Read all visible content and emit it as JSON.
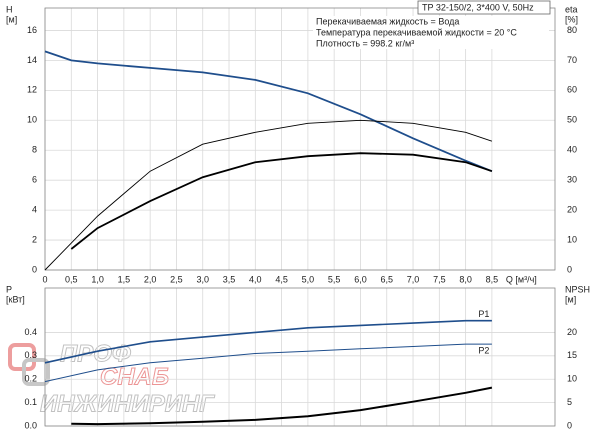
{
  "chart_data": [
    {
      "type": "line",
      "title": "TP 32-150/2, 3*400 V, 50Hz",
      "annotations": [
        "Перекачиваемая жидкость = Вода",
        "Температура перекачиваемой жидкости = 20 °C",
        "Плотность = 998.2 кг/м³"
      ],
      "y_label": [
        "H",
        "[м]"
      ],
      "y2_label": [
        "eta",
        "[%]"
      ],
      "x_label": "Q [м³/ч]",
      "xlim": [
        0,
        9.7
      ],
      "ylim": [
        0,
        17.5
      ],
      "y2lim": [
        0,
        87.5
      ],
      "xticks": [
        0,
        {
          "value": 0.5,
          "label": "0,5"
        },
        {
          "value": 1,
          "label": "1,0"
        },
        {
          "value": 1.5,
          "label": "1,5"
        },
        {
          "value": 2,
          "label": "2,0"
        },
        {
          "value": 2.5,
          "label": "2,5"
        },
        {
          "value": 3,
          "label": "3,0"
        },
        {
          "value": 3.5,
          "label": "3,5"
        },
        {
          "value": 4,
          "label": "4,0"
        },
        {
          "value": 4.5,
          "label": "4,5"
        },
        {
          "value": 5,
          "label": "5,0"
        },
        {
          "value": 5.5,
          "label": "5,5"
        },
        {
          "value": 6,
          "label": "6,0"
        },
        {
          "value": 6.5,
          "label": "6,5"
        },
        {
          "value": 7,
          "label": "7,0"
        },
        {
          "value": 7.5,
          "label": "7,5"
        },
        {
          "value": 8,
          "label": "8,0"
        },
        {
          "value": 8.5,
          "label": "8,5"
        }
      ],
      "yticks": [
        0,
        2,
        4,
        6,
        8,
        10,
        12,
        14,
        16
      ],
      "y2ticks": [
        0,
        10,
        20,
        30,
        40,
        50,
        60,
        70,
        80
      ],
      "grid": true,
      "series": [
        {
          "color": "#1f4e8c",
          "x": [
            0,
            0.5,
            1,
            2,
            3,
            4,
            5,
            6,
            7,
            8,
            8.5
          ],
          "values": [
            14.6,
            14.0,
            13.8,
            13.5,
            13.2,
            12.7,
            11.8,
            10.4,
            8.8,
            7.3,
            6.6
          ]
        },
        {
          "color": "#000000",
          "axis": "y2",
          "x": [
            0,
            0.5,
            1,
            2,
            3,
            4,
            5,
            6,
            7,
            8,
            8.5
          ],
          "values": [
            0,
            9,
            18,
            33,
            42,
            46,
            49,
            50,
            49,
            46,
            43
          ]
        },
        {
          "color": "#000000",
          "axis": "y2",
          "x": [
            0.5,
            1,
            2,
            3,
            4,
            5,
            6,
            7,
            8,
            8.5
          ],
          "values": [
            7,
            14,
            23,
            31,
            36,
            38,
            39,
            38.5,
            36,
            33
          ]
        }
      ]
    },
    {
      "type": "line",
      "y_label": [
        "P",
        "[кВт]"
      ],
      "y2_label": [
        "NPSH",
        "[м]"
      ],
      "xlim": [
        0,
        9.7
      ],
      "ylim": [
        0,
        0.59
      ],
      "y2lim": [
        0,
        29.5
      ],
      "yticks": [
        {
          "value": 0,
          "label": "0.0"
        },
        0.1,
        0.2,
        0.3,
        0.4
      ],
      "y2ticks": [
        0,
        5,
        10,
        15,
        20
      ],
      "grid": true,
      "series": [
        {
          "name": "P1",
          "color": "#1f4e8c",
          "x": [
            0,
            1,
            2,
            3,
            4,
            5,
            6,
            7,
            8,
            8.5
          ],
          "values": [
            0.27,
            0.32,
            0.36,
            0.38,
            0.4,
            0.42,
            0.43,
            0.44,
            0.45,
            0.45
          ]
        },
        {
          "name": "P2",
          "color": "#1f4e8c",
          "x": [
            0,
            1,
            2,
            3,
            4,
            5,
            6,
            7,
            8,
            8.5
          ],
          "values": [
            0.19,
            0.24,
            0.27,
            0.29,
            0.31,
            0.32,
            0.33,
            0.34,
            0.35,
            0.35
          ]
        },
        {
          "color": "#000000",
          "axis": "y2",
          "x": [
            0.5,
            1,
            2,
            3,
            4,
            5,
            6,
            7,
            8,
            8.5
          ],
          "values": [
            0.5,
            0.4,
            0.6,
            0.9,
            1.3,
            2.1,
            3.4,
            5.2,
            7.1,
            8.2
          ]
        }
      ]
    }
  ],
  "watermark": [
    "ПРОФ",
    "СНАБ",
    "ИНЖИНИРИНГ"
  ]
}
